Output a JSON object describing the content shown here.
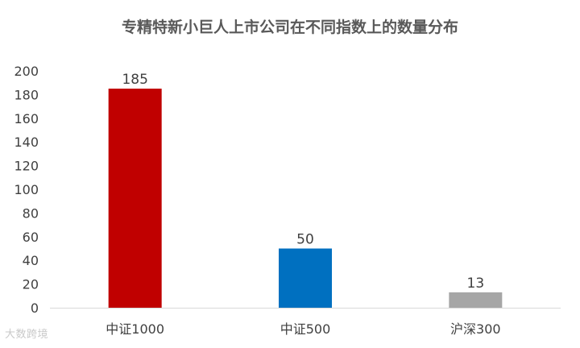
{
  "chart_data": {
    "type": "bar",
    "title": "专精特新小巨人上市公司在不同指数上的数量分布",
    "categories": [
      "中证1000",
      "中证500",
      "沪深300"
    ],
    "values": [
      185,
      50,
      13
    ],
    "colors": [
      "#c00000",
      "#0070c0",
      "#a6a6a6"
    ],
    "ylim": [
      0,
      200
    ],
    "yticks": [
      0,
      20,
      40,
      60,
      80,
      100,
      120,
      140,
      160,
      180,
      200
    ],
    "grid": false,
    "legend": "none"
  },
  "watermark": {
    "text": "大数跨境"
  }
}
